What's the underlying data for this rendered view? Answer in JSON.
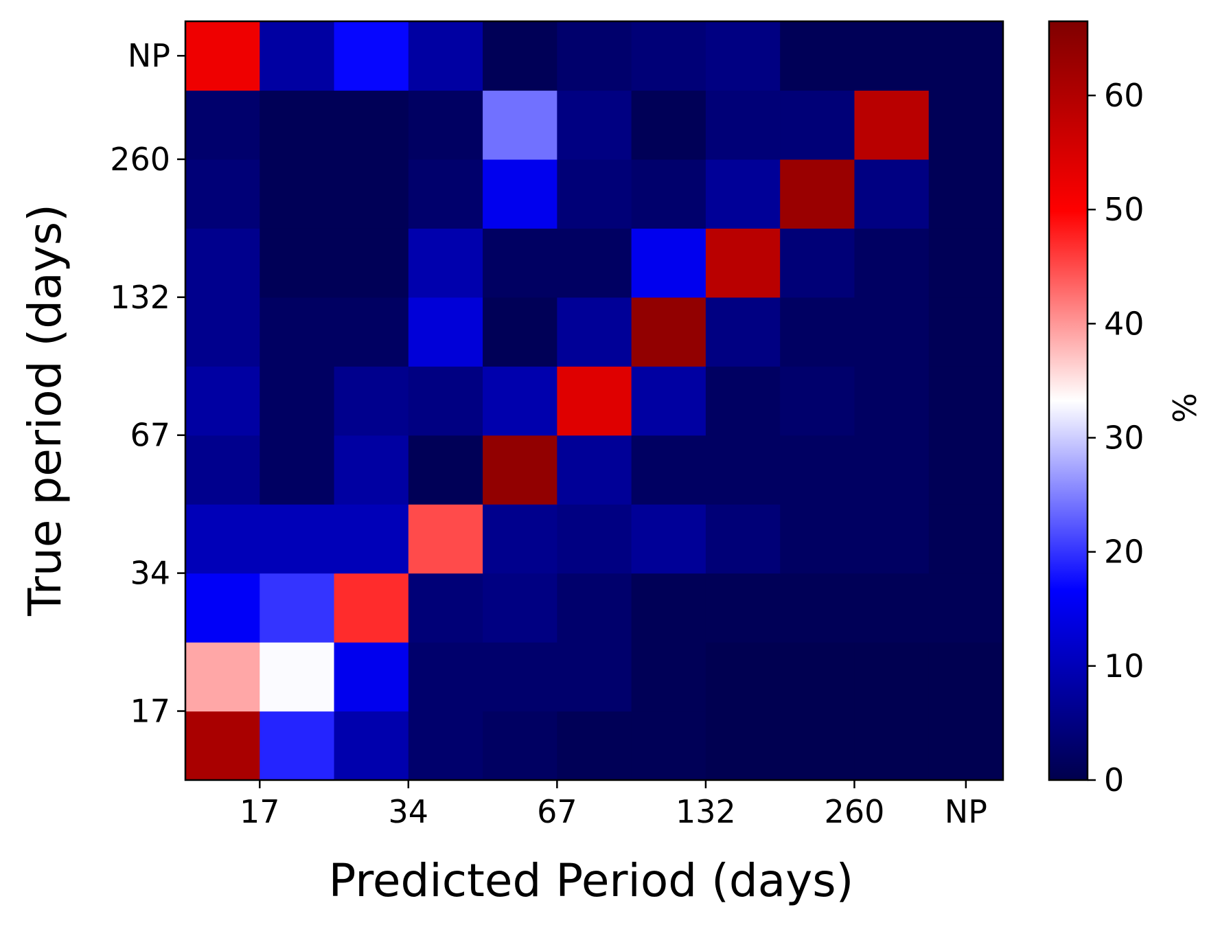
{
  "chart_data": {
    "type": "heatmap",
    "xlabel": "Predicted Period (days)",
    "ylabel": "True period (days)",
    "x_tick_labels": [
      "17",
      "34",
      "67",
      "132",
      "260",
      "NP"
    ],
    "y_tick_labels": [
      "17",
      "34",
      "67",
      "132",
      "260",
      "NP"
    ],
    "n_cols": 11,
    "n_rows": 11,
    "rows_bottom_to_top": [
      [
        61,
        19,
        9,
        3,
        2,
        1,
        1,
        0.5,
        0.5,
        0.5,
        0.5
      ],
      [
        39,
        33,
        15,
        3,
        3,
        3,
        1,
        0.5,
        0.5,
        0.5,
        0.5
      ],
      [
        16,
        20,
        47,
        4,
        5,
        3,
        1,
        1,
        1,
        1,
        1
      ],
      [
        10,
        10,
        10,
        45,
        6,
        5,
        7,
        4,
        2,
        2,
        1
      ],
      [
        6,
        2,
        8,
        1,
        64,
        7,
        2,
        2,
        2,
        2,
        1
      ],
      [
        8,
        2,
        6,
        5,
        9,
        54,
        8,
        2,
        3,
        2,
        1
      ],
      [
        6,
        2,
        2,
        13,
        1,
        7,
        64,
        5,
        2,
        2,
        1
      ],
      [
        6,
        1,
        1,
        9,
        2,
        2,
        15,
        59,
        4,
        2,
        1
      ],
      [
        4,
        1,
        1,
        3,
        15,
        4,
        3,
        7,
        63,
        5,
        1
      ],
      [
        3,
        1,
        1,
        2,
        24,
        5,
        1,
        4,
        4,
        59,
        1
      ],
      [
        52,
        8,
        17,
        8,
        1,
        3,
        4,
        5,
        1,
        1,
        1
      ]
    ],
    "colorbar": {
      "label": "%",
      "min": 0,
      "max": 66.5,
      "ticks": [
        0,
        10,
        20,
        30,
        40,
        50,
        60
      ],
      "colormap": "seismic",
      "stops": [
        "#00004c",
        "#0000ff",
        "#ffffff",
        "#ff0000",
        "#7f0000"
      ]
    }
  }
}
